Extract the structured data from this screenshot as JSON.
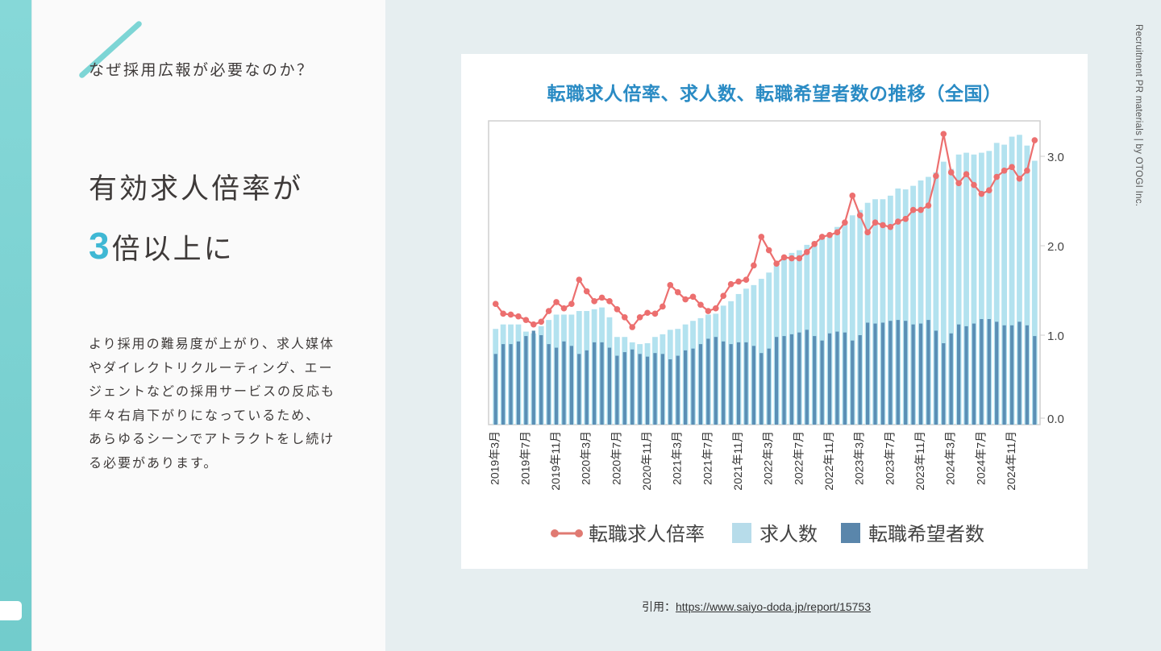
{
  "left_panel": {
    "question": "なぜ採用広報が必要なのか？",
    "headline_line1": "有効求人倍率が",
    "headline_number": "3",
    "headline_line2_rest": "倍以上に",
    "body": [
      "より採用の難易度が上がり、求人媒体",
      "やダイレクトリクルーティング、エー",
      "ジェントなどの採用サービスの反応も",
      "年々右肩下がりになっているため、",
      "あらゆるシーンでアトラクトをし続け",
      "る必要があります。"
    ]
  },
  "side_label": "Recruitment PR materials | by OTOGI Inc.",
  "citation": {
    "prefix": "引用：",
    "link": "https://www.saiyo-doda.jp/report/15753"
  },
  "colors": {
    "accent": "#3fb8d4",
    "strip": "#78cfcf",
    "title": "#2a8bc4",
    "line": "#e86a6a",
    "bar_light": "#aee0ee",
    "bar_dark": "#5b8fb3"
  },
  "chart_data": {
    "type": "bar+line",
    "title": "転職求人倍率、求人数、転職希望者数の推移（全国）",
    "xlabel": "",
    "ylabel": "",
    "ylim": [
      0,
      3.4
    ],
    "yticks": [
      "0.0",
      "1.0",
      "2.0",
      "3.0"
    ],
    "grid": false,
    "legend_position": "bottom",
    "x_tick_labels": [
      "2019年3月",
      "2019年7月",
      "2019年11月",
      "2020年3月",
      "2020年7月",
      "2020年11月",
      "2021年3月",
      "2021年7月",
      "2021年11月",
      "2022年3月",
      "2022年7月",
      "2022年11月",
      "2023年3月",
      "2023年7月",
      "2023年11月",
      "2024年3月",
      "2024年7月",
      "2024年11月"
    ],
    "x_tick_every": 4,
    "series": [
      {
        "name": "転職求人倍率",
        "kind": "line",
        "values": [
          1.35,
          1.24,
          1.23,
          1.21,
          1.17,
          1.12,
          1.15,
          1.27,
          1.37,
          1.3,
          1.35,
          1.62,
          1.49,
          1.38,
          1.42,
          1.38,
          1.29,
          1.2,
          1.09,
          1.2,
          1.25,
          1.24,
          1.32,
          1.56,
          1.48,
          1.4,
          1.43,
          1.34,
          1.27,
          1.3,
          1.44,
          1.57,
          1.6,
          1.62,
          1.78,
          2.1,
          1.95,
          1.8,
          1.87,
          1.86,
          1.86,
          1.93,
          2.02,
          2.1,
          2.12,
          2.15,
          2.26,
          2.56,
          2.34,
          2.15,
          2.26,
          2.23,
          2.21,
          2.27,
          2.3,
          2.4,
          2.4,
          2.45,
          2.78,
          3.25,
          2.82,
          2.7,
          2.8,
          2.68,
          2.58,
          2.62,
          2.77,
          2.84,
          2.88,
          2.75,
          2.84,
          3.18
        ]
      },
      {
        "name": "求人数",
        "kind": "bar",
        "values": [
          1.07,
          1.12,
          1.12,
          1.12,
          1.04,
          1.02,
          1.1,
          1.17,
          1.23,
          1.23,
          1.23,
          1.27,
          1.27,
          1.29,
          1.31,
          1.2,
          0.98,
          0.98,
          0.92,
          0.9,
          0.91,
          0.98,
          1.01,
          1.06,
          1.07,
          1.12,
          1.16,
          1.19,
          1.23,
          1.24,
          1.33,
          1.38,
          1.46,
          1.52,
          1.56,
          1.63,
          1.7,
          1.78,
          1.87,
          1.92,
          1.95,
          2.01,
          2.05,
          2.1,
          2.14,
          2.21,
          2.26,
          2.34,
          2.4,
          2.48,
          2.52,
          2.52,
          2.56,
          2.64,
          2.63,
          2.67,
          2.73,
          2.77,
          2.82,
          2.94,
          2.86,
          3.02,
          3.04,
          3.02,
          3.04,
          3.06,
          3.15,
          3.13,
          3.22,
          3.24,
          3.12,
          2.95
        ]
      },
      {
        "name": "転職希望者数",
        "kind": "bar",
        "values": [
          0.79,
          0.9,
          0.9,
          0.93,
          0.99,
          1.05,
          1.0,
          0.9,
          0.86,
          0.93,
          0.88,
          0.79,
          0.83,
          0.92,
          0.92,
          0.86,
          0.77,
          0.81,
          0.84,
          0.79,
          0.76,
          0.8,
          0.79,
          0.73,
          0.77,
          0.83,
          0.85,
          0.9,
          0.96,
          0.98,
          0.93,
          0.9,
          0.92,
          0.92,
          0.88,
          0.8,
          0.85,
          0.98,
          0.99,
          1.01,
          1.03,
          1.06,
          0.99,
          0.94,
          1.02,
          1.04,
          1.03,
          0.94,
          1.0,
          1.14,
          1.13,
          1.14,
          1.16,
          1.17,
          1.16,
          1.12,
          1.13,
          1.17,
          1.05,
          0.91,
          1.02,
          1.12,
          1.1,
          1.13,
          1.18,
          1.18,
          1.15,
          1.11,
          1.11,
          1.15,
          1.11,
          0.99
        ]
      }
    ]
  }
}
